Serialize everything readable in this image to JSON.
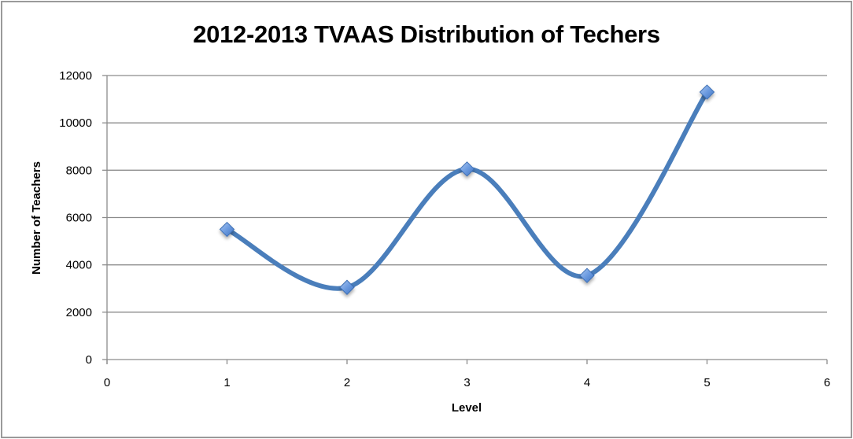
{
  "chart_data": {
    "type": "line",
    "title": "2012-2013 TVAAS Distribution of Techers",
    "xlabel": "Level",
    "ylabel": "Number of Teachers",
    "x": [
      1,
      2,
      3,
      4,
      5
    ],
    "series": [
      {
        "name": "Number of Teachers",
        "values": [
          5500,
          3050,
          8050,
          3550,
          11300
        ],
        "color": "#4A7EBB",
        "smooth": true,
        "marker": "diamond"
      }
    ],
    "xlim": [
      0,
      6
    ],
    "ylim": [
      0,
      12000
    ],
    "xticks": [
      "0",
      "1",
      "2",
      "3",
      "4",
      "5",
      "6"
    ],
    "yticks": [
      "0",
      "2000",
      "4000",
      "6000",
      "8000",
      "10000",
      "12000"
    ],
    "grid": {
      "horizontal": true,
      "vertical": false
    },
    "legend": null
  },
  "colors": {
    "line": "#4A7EBB",
    "marker_fill": "#6C9BE0",
    "grid": "#8c8c8c",
    "border": "#9a9a9a"
  }
}
